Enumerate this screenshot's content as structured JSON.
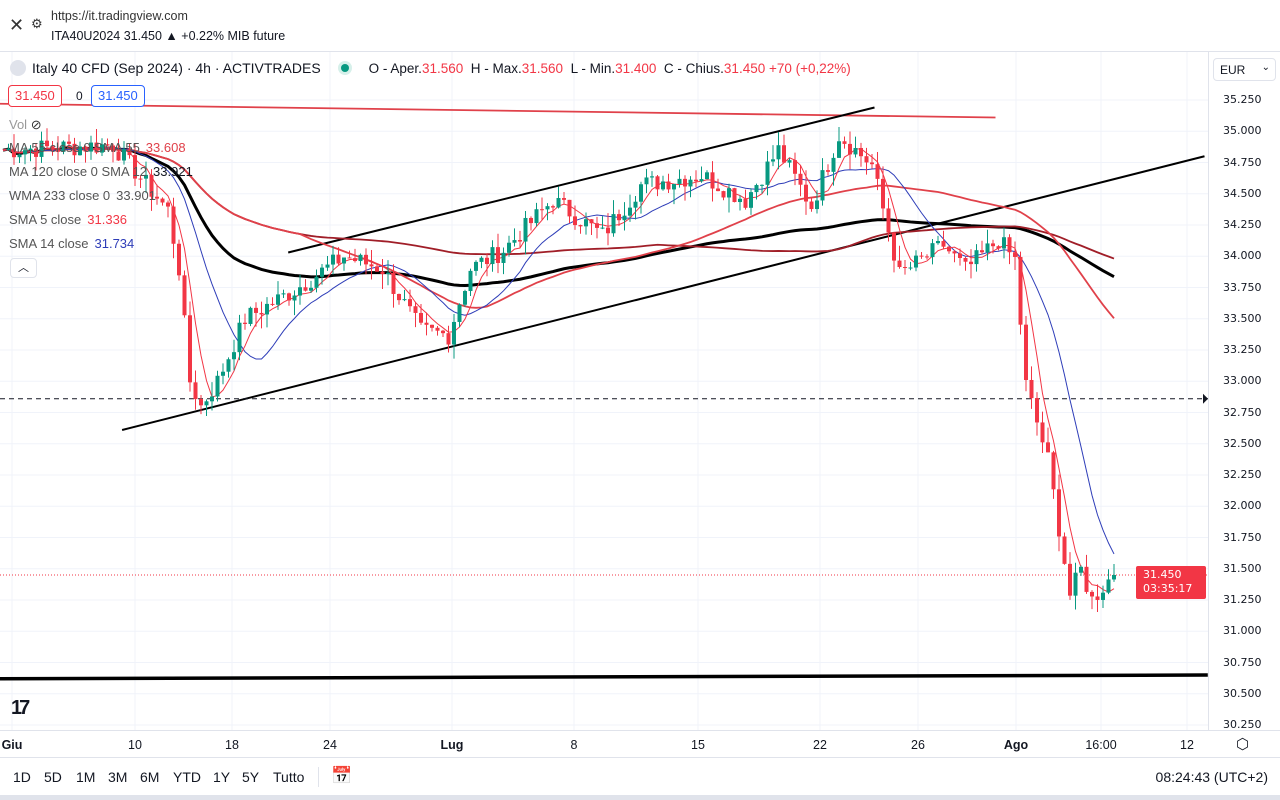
{
  "browser": {
    "url": "https://it.tradingview.com",
    "subtitle": "ITA40U2024 31.450 ▲ +0.22% MIB future"
  },
  "legend": {
    "title": "Italy 40 CFD (Sep 2024) · 4h · ACTIVTRADES",
    "o_label": "O - Aper.",
    "o": "31.560",
    "h_label": "H - Max.",
    "h": "31.560",
    "l_label": "L - Min.",
    "l": "31.400",
    "c_label": "C - Chius.",
    "c": "31.450",
    "change": "+70 (+0,22%)"
  },
  "bid": "31.450",
  "spread": "0",
  "ask": "31.450",
  "vol_label": "Vol",
  "indicators": [
    {
      "label": "MA 55 close 0 SMA 55",
      "value": "33.608",
      "color": "#e0414a"
    },
    {
      "label": "MA 120 close 0 SMA 12",
      "value": "33.921",
      "color": "#131722"
    },
    {
      "label": "WMA 233 close 0",
      "value": "33.901",
      "color": "#555555"
    },
    {
      "label": "SMA 5 close",
      "value": "31.336",
      "color": "#f23645"
    },
    {
      "label": "SMA 14 close",
      "value": "31.734",
      "color": "#2e3db8"
    }
  ],
  "currency": "EUR",
  "price_ticks": [
    "35.250",
    "35.000",
    "34.750",
    "34.500",
    "34.250",
    "34.000",
    "33.750",
    "33.500",
    "33.250",
    "33.000",
    "32.750",
    "32.500",
    "32.250",
    "32.000",
    "31.750",
    "31.500",
    "31.250",
    "31.000",
    "30.750",
    "30.500",
    "30.250"
  ],
  "current_price": {
    "value": "31.450",
    "countdown": "03:35:17"
  },
  "time_ticks": [
    {
      "t": "Giu",
      "bold": true
    },
    {
      "t": "10"
    },
    {
      "t": "18"
    },
    {
      "t": "24"
    },
    {
      "t": "Lug",
      "bold": true
    },
    {
      "t": "8"
    },
    {
      "t": "15"
    },
    {
      "t": "22"
    },
    {
      "t": "26"
    },
    {
      "t": "Ago",
      "bold": true
    },
    {
      "t": "16:00"
    },
    {
      "t": "12"
    }
  ],
  "ranges": [
    "1D",
    "5D",
    "1M",
    "3M",
    "6M",
    "YTD",
    "1Y",
    "5Y",
    "Tutto"
  ],
  "clock": "08:24:43 (UTC+2)",
  "colors": {
    "up": "#089981",
    "down": "#f23645"
  },
  "chart_data": {
    "type": "candlestick",
    "price_range": [
      30.25,
      35.25
    ],
    "path": [
      [
        0,
        34.85
      ],
      [
        20,
        34.89
      ],
      [
        30,
        34.37
      ],
      [
        32,
        33.9
      ],
      [
        34,
        33.0
      ],
      [
        36,
        32.8
      ],
      [
        39,
        33.0
      ],
      [
        44,
        33.5
      ],
      [
        53,
        33.73
      ],
      [
        62,
        34.0
      ],
      [
        69,
        33.9
      ],
      [
        76,
        33.4
      ],
      [
        81,
        33.37
      ],
      [
        85,
        33.9
      ],
      [
        91,
        34.05
      ],
      [
        100,
        34.45
      ],
      [
        109,
        34.17
      ],
      [
        116,
        34.57
      ],
      [
        127,
        34.65
      ],
      [
        135,
        34.45
      ],
      [
        141,
        34.85
      ],
      [
        147,
        34.4
      ],
      [
        152,
        34.97
      ],
      [
        158,
        34.73
      ],
      [
        163,
        33.85
      ],
      [
        171,
        34.09
      ],
      [
        175,
        33.89
      ],
      [
        181,
        34.13
      ],
      [
        184,
        33.97
      ],
      [
        186,
        32.97
      ],
      [
        190,
        32.37
      ],
      [
        194,
        31.29
      ],
      [
        196,
        31.49
      ],
      [
        198,
        31.25
      ],
      [
        201,
        31.41
      ],
      [
        202,
        31.45
      ]
    ],
    "lines": [
      {
        "name": "resistance",
        "from": [
          0,
          35.22
        ],
        "to": [
          181,
          35.11
        ],
        "color": "#e0414a"
      },
      {
        "name": "channel-upper",
        "from": [
          52.4,
          34.03
        ],
        "to": [
          159,
          35.19
        ],
        "color": "#000000"
      },
      {
        "name": "channel-lower",
        "from": [
          22.2,
          32.61
        ],
        "to": [
          219,
          34.8
        ],
        "color": "#000000"
      },
      {
        "name": "support",
        "from": [
          0,
          30.62
        ],
        "to": [
          219.6,
          30.65
        ],
        "color": "#000000"
      }
    ],
    "dashed_level": 32.86
  }
}
